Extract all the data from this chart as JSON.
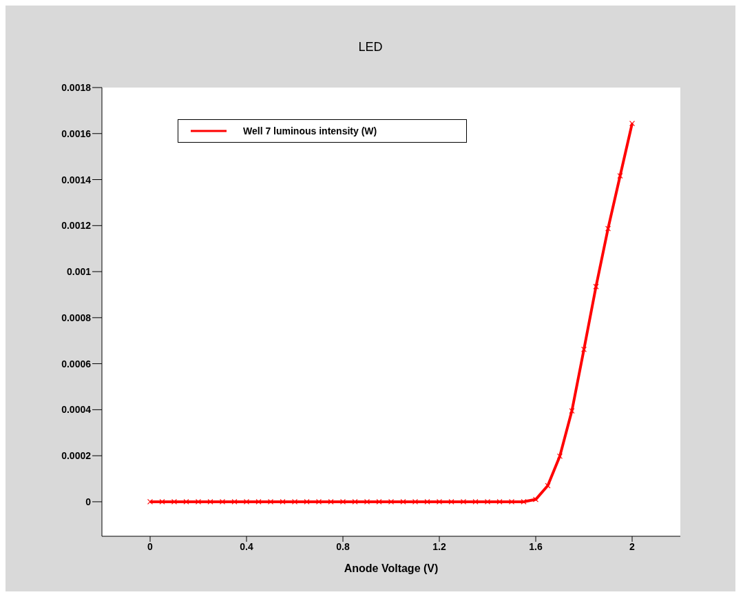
{
  "chart_data": {
    "type": "line",
    "title": "LED",
    "xlabel": "Anode Voltage (V)",
    "x": [
      0,
      0.05,
      0.1,
      0.15,
      0.2,
      0.25,
      0.3,
      0.35,
      0.4,
      0.45,
      0.5,
      0.55,
      0.6,
      0.65,
      0.7,
      0.75,
      0.8,
      0.85,
      0.9,
      0.95,
      1,
      1.05,
      1.1,
      1.15,
      1.2,
      1.25,
      1.3,
      1.35,
      1.4,
      1.45,
      1.5,
      1.55,
      1.6,
      1.65,
      1.7,
      1.75,
      1.8,
      1.85,
      1.9,
      1.95,
      2
    ],
    "series": [
      {
        "name": "Well 7 luminous intensity (W)",
        "color": "#ff0000",
        "values": [
          0,
          0,
          0,
          0,
          0,
          0,
          0,
          0,
          0,
          0,
          0,
          0,
          0,
          0,
          0,
          0,
          0,
          0,
          0,
          0,
          0,
          0,
          0,
          0,
          0,
          0,
          0,
          0,
          0,
          0,
          0,
          0,
          1e-05,
          7e-05,
          0.000198,
          0.000395,
          0.000662,
          0.000935,
          0.001187,
          0.001416,
          0.001644
        ]
      }
    ],
    "xlim": [
      -0.2,
      2.2
    ],
    "xticks": [
      0,
      0.4,
      0.8,
      1.2,
      1.6,
      2
    ],
    "ylim": [
      -0.00015,
      0.0018
    ],
    "yticks": [
      0,
      0.0002,
      0.0004,
      0.0006,
      0.0008,
      0.001,
      0.0012,
      0.0014,
      0.0016,
      0.0018
    ],
    "grid": false,
    "legend": "top left",
    "marker": "cross",
    "line_style": "solid"
  }
}
